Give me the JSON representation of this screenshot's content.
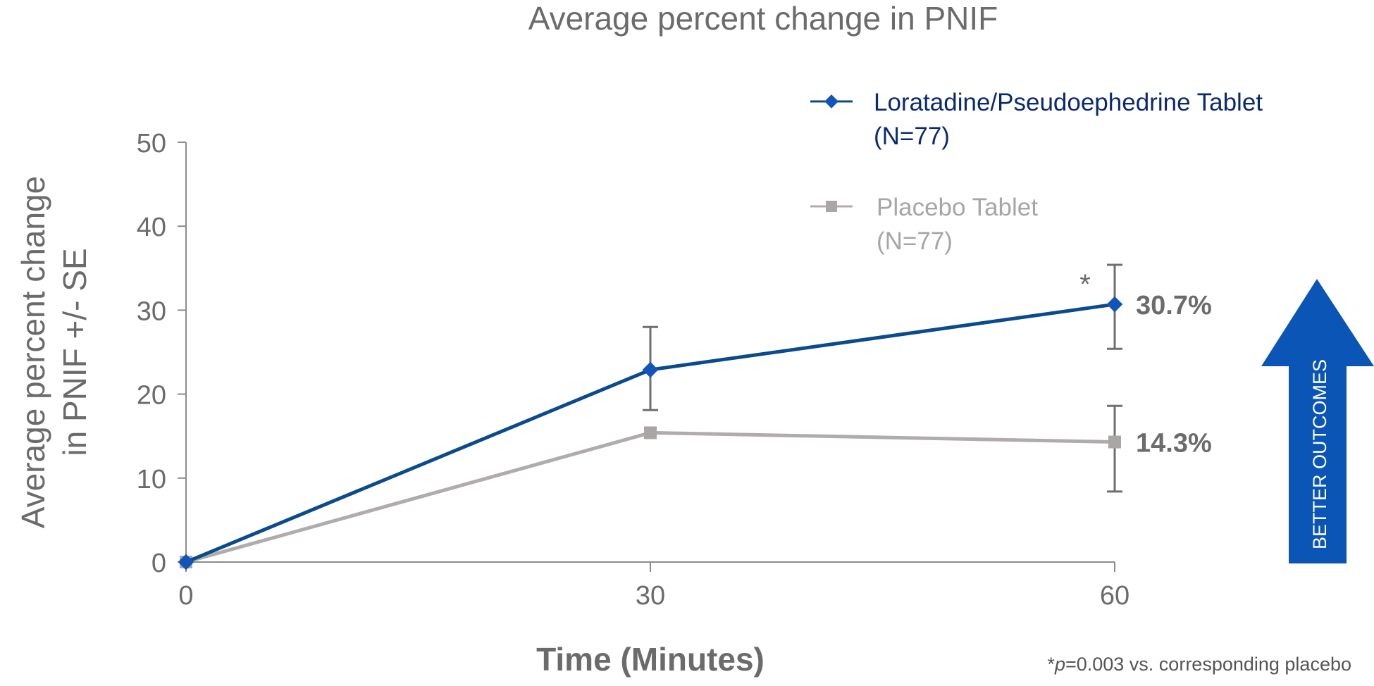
{
  "chart_data": {
    "type": "line",
    "title": "Average percent change in PNIF",
    "xlabel": "Time (Minutes)",
    "ylabel_lines": [
      "Average percent change",
      "in PNIF +/- SE"
    ],
    "x": [
      0,
      30,
      60
    ],
    "x_ticks": [
      "0",
      "30",
      "60"
    ],
    "y_ticks": [
      "0",
      "10",
      "20",
      "30",
      "40",
      "50"
    ],
    "ylim": [
      0,
      50
    ],
    "xlim": [
      0,
      60
    ],
    "grid": false,
    "legend_position": "top-right",
    "series": [
      {
        "name_lines": [
          "Loratadine/Pseudoephedrine Tablet",
          "(N=77)"
        ],
        "color": "#0b4a8c",
        "marker_color": "#1155b8",
        "legend_text_color": "#0b2a6e",
        "marker": "diamond",
        "values": [
          0,
          22.9,
          30.7
        ],
        "error_low": [
          null,
          18.1,
          25.4
        ],
        "error_high": [
          null,
          28.0,
          35.4
        ],
        "end_label": "30.7%"
      },
      {
        "name_lines": [
          "Placebo Tablet",
          "(N=77)"
        ],
        "color": "#b0acac",
        "marker_color": "#aaa6a6",
        "legend_text_color": "#a6a6a6",
        "marker": "square",
        "values": [
          0,
          15.4,
          14.3
        ],
        "error_low": [
          null,
          null,
          8.4
        ],
        "error_high": [
          null,
          null,
          18.6
        ],
        "end_label": "14.3%"
      }
    ],
    "annotations": {
      "significance_marker": "*",
      "footnote_star": "*",
      "footnote_p": "p",
      "footnote_rest": "=0.003 vs. corresponding placebo",
      "arrow_label": "BETTER OUTCOMES",
      "arrow_color": "#0a55b5"
    }
  }
}
